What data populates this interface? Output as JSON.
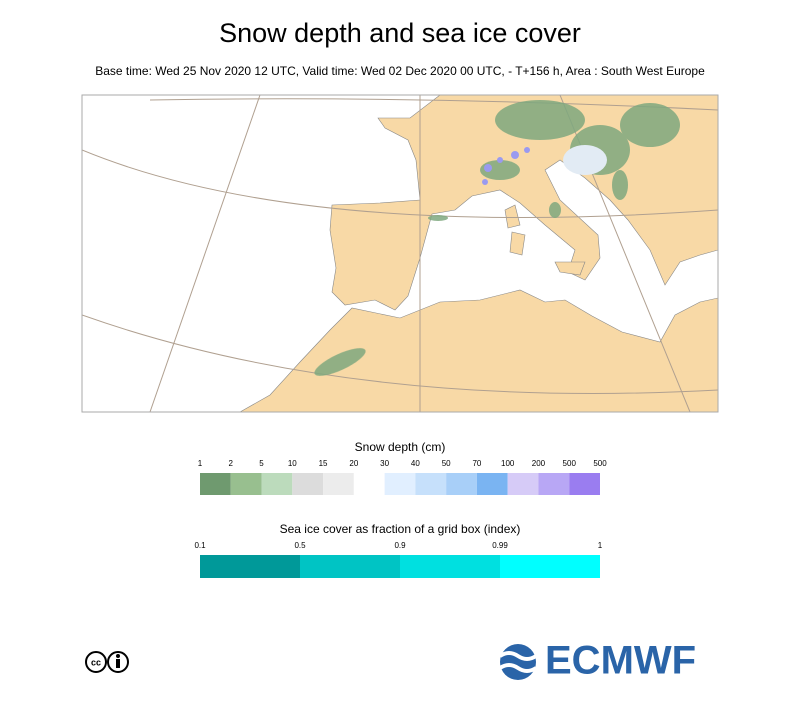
{
  "header": {
    "title": "Snow depth and sea ice cover",
    "subtitle": "Base time: Wed 25 Nov 2020 12 UTC, Valid time: Wed 02 Dec 2020 00 UTC, - T+156 h, Area : South West Europe"
  },
  "snow_legend": {
    "title": "Snow depth (cm)",
    "labels": [
      "1",
      "2",
      "5",
      "10",
      "15",
      "20",
      "30",
      "40",
      "50",
      "70",
      "100",
      "200",
      "500",
      "500"
    ],
    "colors": [
      "#6f9a6f",
      "#98bf8f",
      "#bcdbbc",
      "#dcdcdc",
      "#ececec",
      "#ffffff",
      "#e1efff",
      "#c6e0fb",
      "#a8cff8",
      "#7ab4f2",
      "#d6cbf7",
      "#b8a7f5",
      "#9a7df0"
    ]
  },
  "ice_legend": {
    "title": "Sea ice cover as fraction of a grid box (index)",
    "labels": [
      "0.1",
      "0.5",
      "0.9",
      "0.99",
      "1"
    ],
    "colors": [
      "#009999",
      "#00c4c4",
      "#00e0e0",
      "#00ffff"
    ]
  },
  "logo": {
    "text": "ECMWF"
  }
}
